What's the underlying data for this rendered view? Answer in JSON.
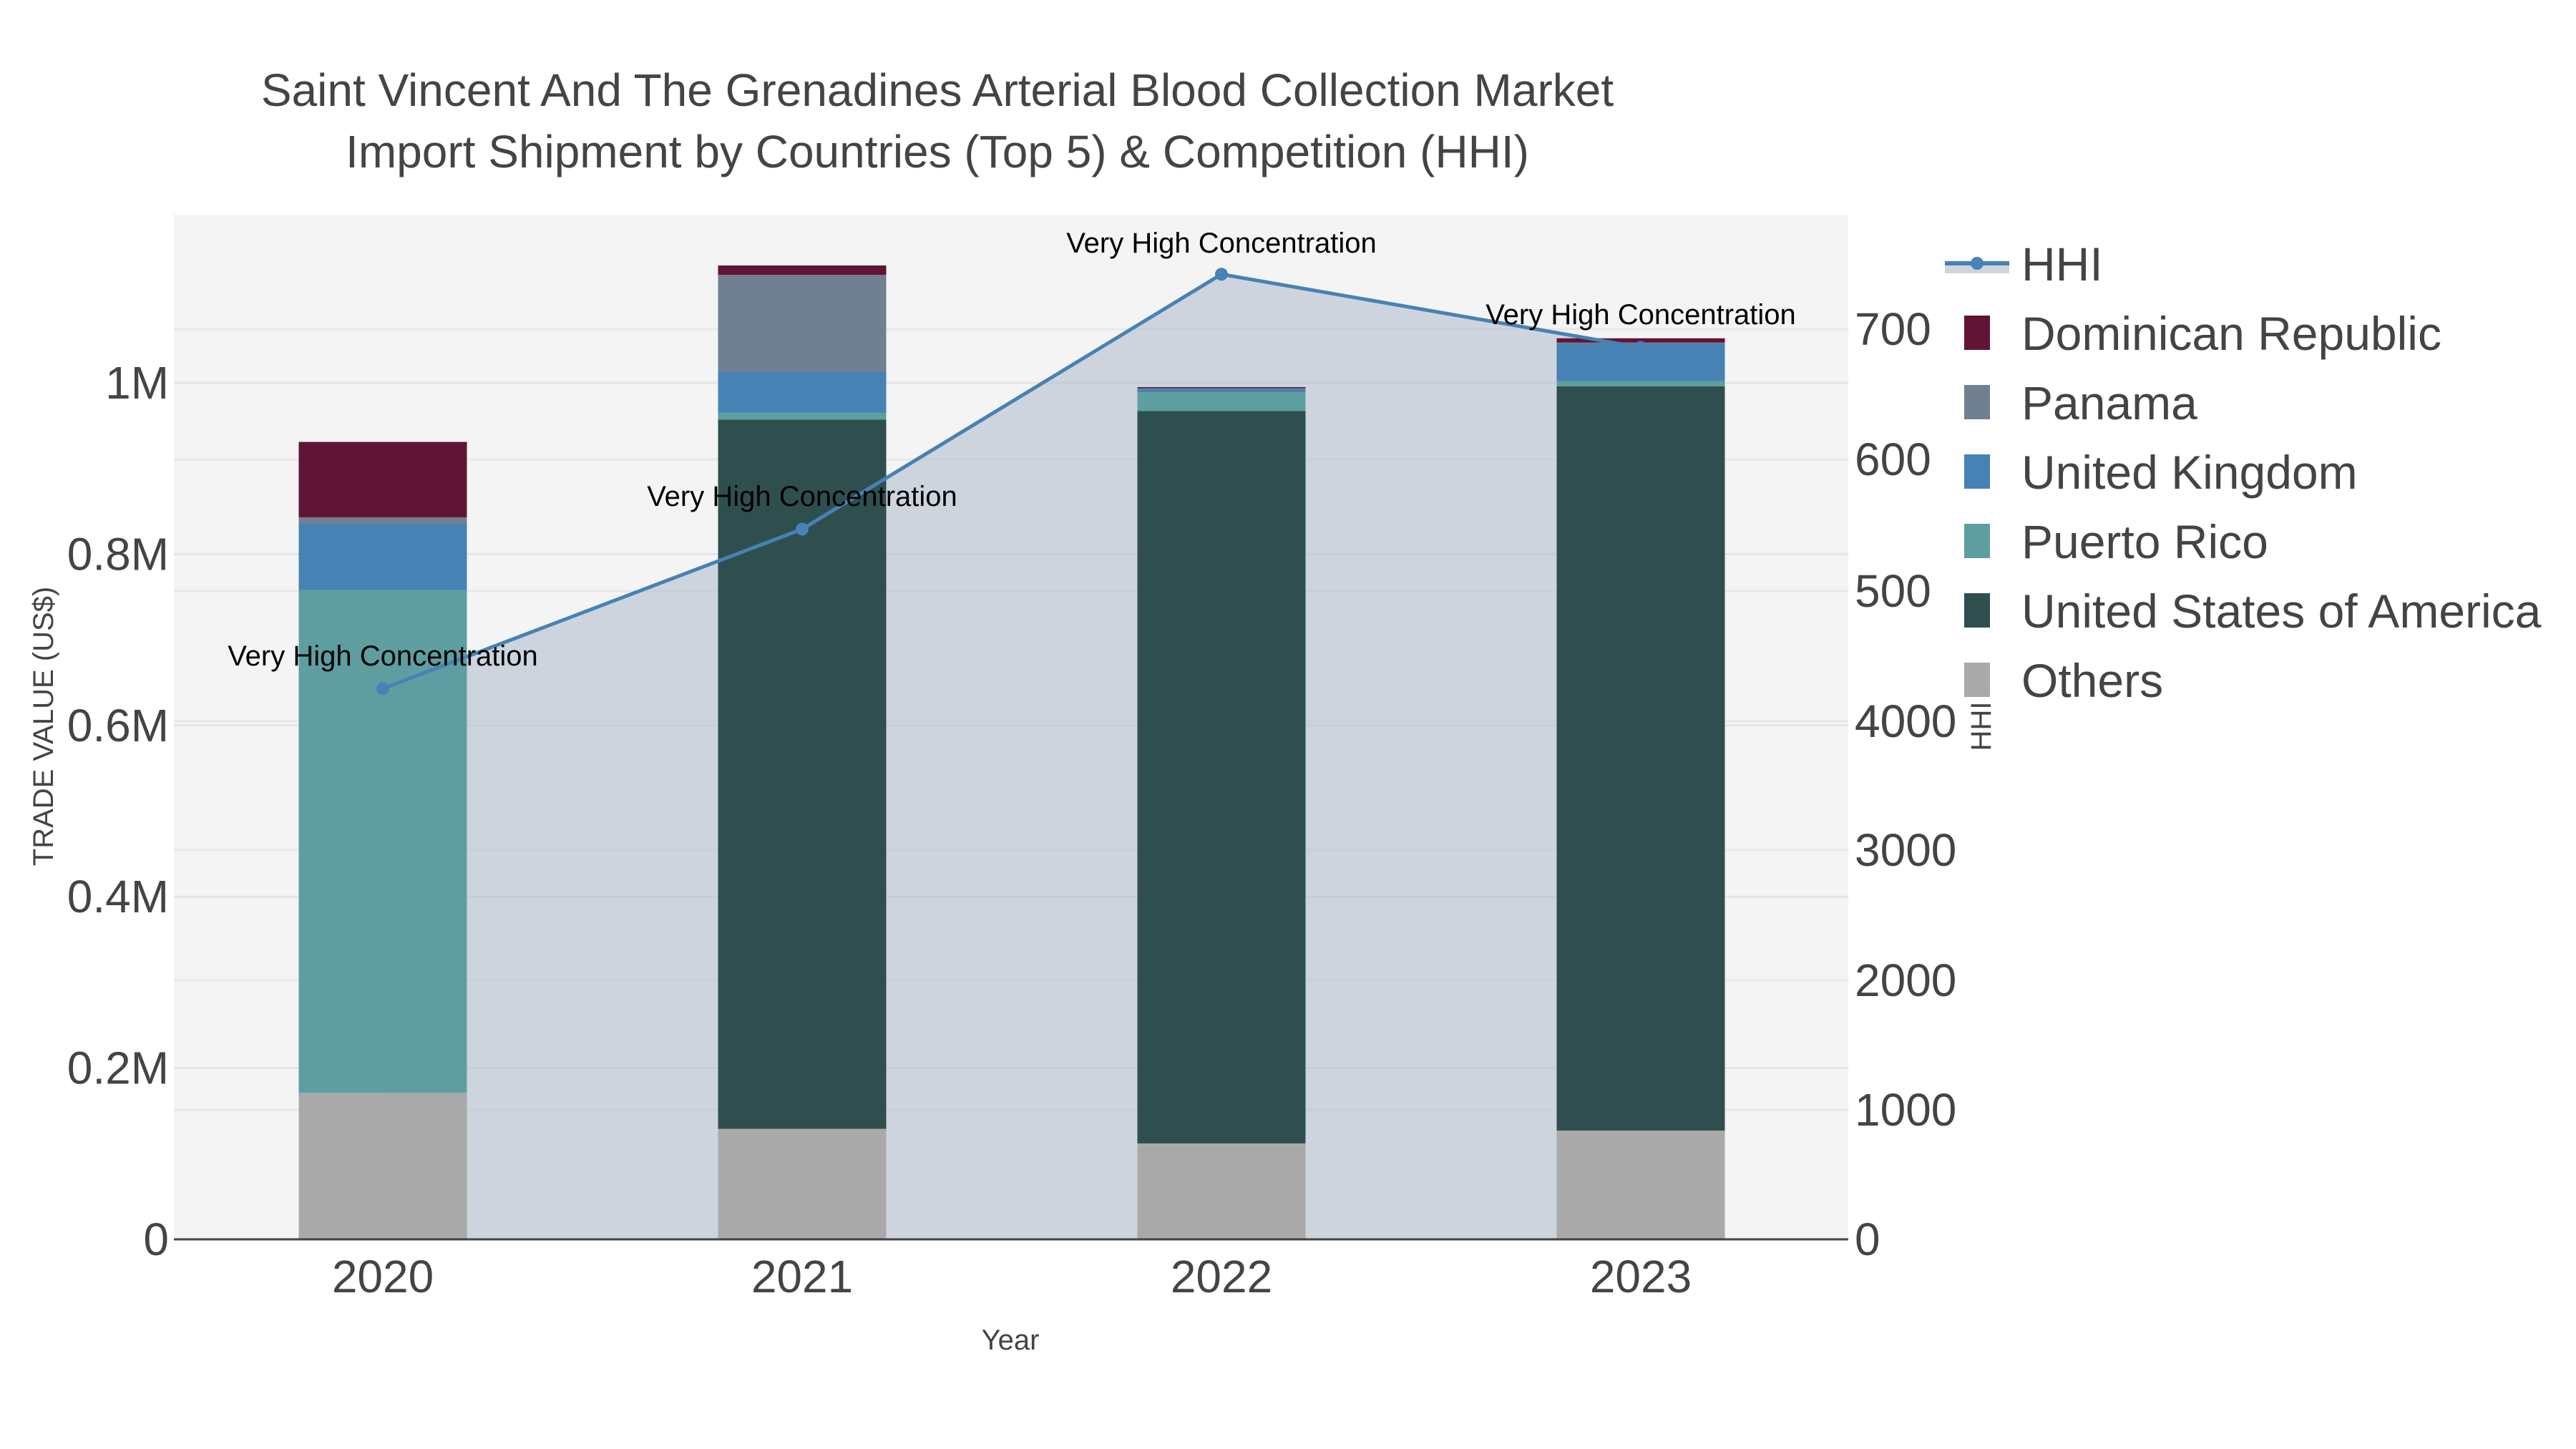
{
  "title_line1": "Saint Vincent And The Grenadines Arterial Blood Collection Market",
  "title_line2": "Import Shipment by Countries (Top 5) & Competition (HHI)",
  "xaxis": {
    "title": "Year",
    "ticks": [
      "2020",
      "2021",
      "2022",
      "2023"
    ]
  },
  "yaxis_left": {
    "title": "TRADE VALUE (US$)",
    "ticks": [
      "0",
      "0.2M",
      "0.4M",
      "0.6M",
      "0.8M",
      "1M"
    ]
  },
  "yaxis_right": {
    "title": "HHI",
    "ticks_lower": [
      "0",
      "1000",
      "2000",
      "3000",
      "4000"
    ],
    "ticks_upper": [
      "400",
      "500",
      "600",
      "700"
    ]
  },
  "legend": [
    {
      "name": "HHI",
      "color": "#4682B4",
      "kind": "line"
    },
    {
      "name": "Dominican Republic",
      "color": "#621435",
      "kind": "bar"
    },
    {
      "name": "Panama",
      "color": "#708090",
      "kind": "bar"
    },
    {
      "name": "United Kingdom",
      "color": "#4682B4",
      "kind": "bar"
    },
    {
      "name": "Puerto Rico",
      "color": "#5F9EA0",
      "kind": "bar"
    },
    {
      "name": "United States of America",
      "color": "#2F4F4F",
      "kind": "bar"
    },
    {
      "name": "Others",
      "color": "#A9A9A9",
      "kind": "bar"
    }
  ],
  "annotations": [
    "Very High Concentration",
    "Very High Concentration",
    "Very High Concentration",
    "Very High Concentration"
  ],
  "chart_data": {
    "type": "bar",
    "stacked": true,
    "title": "Saint Vincent And The Grenadines Arterial Blood Collection Market Import Shipment by Countries (Top 5) & Competition (HHI)",
    "xlabel": "Year",
    "ylabel": "TRADE VALUE (US$)",
    "y2label": "HHI",
    "categories": [
      "2020",
      "2021",
      "2022",
      "2023"
    ],
    "ylim": [
      0,
      1190000
    ],
    "series": [
      {
        "name": "Others",
        "color": "#A9A9A9",
        "values": [
          171000,
          129000,
          112000,
          127000
        ]
      },
      {
        "name": "United States of America",
        "color": "#2F4F4F",
        "values": [
          0,
          828000,
          855000,
          869000
        ]
      },
      {
        "name": "Puerto Rico",
        "color": "#5F9EA0",
        "values": [
          587000,
          8000,
          22000,
          6000
        ]
      },
      {
        "name": "United Kingdom",
        "color": "#4682B4",
        "values": [
          77000,
          48000,
          4000,
          44000
        ]
      },
      {
        "name": "Panama",
        "color": "#708090",
        "values": [
          8000,
          113000,
          1000,
          1000
        ]
      },
      {
        "name": "Dominican Republic",
        "color": "#621435",
        "values": [
          88000,
          11000,
          1000,
          5000
        ]
      }
    ],
    "line_series": {
      "name": "HHI",
      "axis": "right",
      "color": "#4682B4",
      "values": [
        425,
        547,
        742,
        686
      ],
      "labels": [
        "Very High Concentration",
        "Very High Concentration",
        "Very High Concentration",
        "Very High Concentration"
      ]
    },
    "grid": true,
    "legend_position": "right"
  }
}
